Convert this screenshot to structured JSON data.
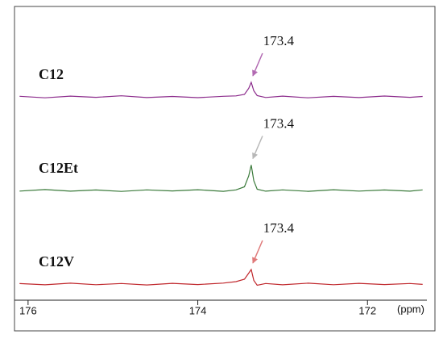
{
  "chart_data": {
    "type": "line",
    "x_label": "(ppm)",
    "x": [
      176.1,
      175.8,
      175.5,
      175.2,
      174.9,
      174.6,
      174.3,
      174.0,
      173.7,
      173.55,
      173.45,
      173.4,
      173.37,
      173.34,
      173.3,
      173.2,
      173.0,
      172.7,
      172.4,
      172.1,
      171.8,
      171.5,
      171.35
    ],
    "series": [
      {
        "name": "C12",
        "color": "#8b2a8b",
        "arrow_color": "#b26ab2",
        "peak_label": "173.4",
        "values": [
          0.5,
          -0.8,
          0.6,
          -0.4,
          0.9,
          -0.6,
          0.3,
          -0.7,
          0.5,
          0.8,
          2,
          7,
          12,
          5,
          1,
          -0.5,
          0.6,
          -0.8,
          0.4,
          -0.6,
          0.7,
          -0.4,
          0.3
        ]
      },
      {
        "name": "C12Et",
        "color": "#3a7a3a",
        "arrow_color": "#b8b8b8",
        "peak_label": "173.4",
        "values": [
          -0.5,
          0.7,
          -0.6,
          0.4,
          -0.8,
          0.5,
          -0.4,
          0.6,
          -0.7,
          0.5,
          3,
          12,
          21,
          8,
          1,
          -0.6,
          0.5,
          -0.7,
          0.6,
          -0.5,
          0.4,
          -0.6,
          0.5
        ]
      },
      {
        "name": "C12V",
        "color": "#c0282d",
        "arrow_color": "#e07a7a",
        "peak_label": "173.4",
        "values": [
          0.4,
          -0.6,
          0.7,
          -0.5,
          0.5,
          -0.7,
          0.6,
          -0.4,
          0.8,
          2,
          4,
          9,
          12,
          3,
          -1,
          0.5,
          -0.6,
          0.7,
          -0.5,
          0.6,
          -0.4,
          0.5,
          -0.3
        ]
      }
    ],
    "xlim": [
      176.16,
      171.3
    ],
    "xticks": [
      176,
      174,
      172
    ]
  }
}
